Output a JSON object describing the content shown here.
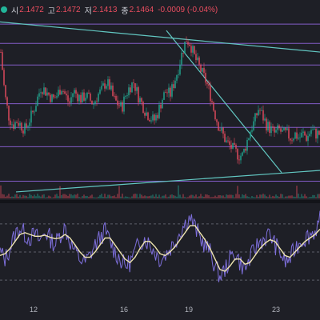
{
  "header": {
    "open_label": "시",
    "open_value": "2.1472",
    "high_label": "고",
    "high_value": "2.1472",
    "low_label": "저",
    "low_value": "2.1413",
    "close_label": "종",
    "close_value": "2.1464",
    "change": "-0.0009 (-0.04%)"
  },
  "xaxis_labels": [
    "12",
    "16",
    "19",
    "23"
  ],
  "colors": {
    "background": "#1e1f26",
    "up": "#22ab94",
    "down": "#e84d5f",
    "level_line": "#9c6cf0",
    "trend_line": "#62c7c2",
    "oscillator": "#7e6fdc",
    "signal": "#f0e6b0"
  },
  "chart_data": [
    {
      "type": "candlestick",
      "title": "",
      "x": {
        "start_label": "12",
        "labels": [
          "12",
          "16",
          "19",
          "23"
        ]
      },
      "price": [
        2.34,
        2.24,
        2.19,
        2.17,
        2.18,
        2.17,
        2.16,
        2.18,
        2.2,
        2.23,
        2.26,
        2.25,
        2.24,
        2.23,
        2.24,
        2.26,
        2.24,
        2.22,
        2.25,
        2.24,
        2.23,
        2.24,
        2.23,
        2.22,
        2.24,
        2.25,
        2.27,
        2.26,
        2.23,
        2.22,
        2.21,
        2.24,
        2.26,
        2.27,
        2.24,
        2.22,
        2.2,
        2.19,
        2.18,
        2.2,
        2.23,
        2.25,
        2.24,
        2.27,
        2.3,
        2.34,
        2.37,
        2.36,
        2.33,
        2.31,
        2.29,
        2.27,
        2.24,
        2.2,
        2.17,
        2.15,
        2.13,
        2.12,
        2.11,
        2.1,
        2.1,
        2.13,
        2.16,
        2.18,
        2.21,
        2.19,
        2.17,
        2.16,
        2.15,
        2.16,
        2.15,
        2.15,
        2.14,
        2.15,
        2.14,
        2.15,
        2.14,
        2.16,
        2.15,
        2.15
      ],
      "levels": [
        2.405,
        2.36,
        2.31,
        2.22,
        2.165,
        2.12,
        2.04
      ],
      "trendlines": [
        {
          "from": [
            0.0,
            2.41
          ],
          "to": [
            1.0,
            2.34
          ]
        },
        {
          "from": [
            0.52,
            2.39
          ],
          "to": [
            0.88,
            2.06
          ]
        },
        {
          "from": [
            0.05,
            2.015
          ],
          "to": [
            1.0,
            2.065
          ]
        }
      ],
      "volume_hint": "small volume bars along bottom of price pane"
    },
    {
      "type": "line",
      "title": "",
      "series": [
        {
          "values": [
            0.0,
            -0.2,
            0.1,
            0.5,
            0.7,
            0.5,
            0.4,
            0.5,
            0.3,
            0.6,
            0.4,
            0.2,
            0.5,
            0.7,
            0.3,
            0.0,
            -0.2,
            -0.3,
            -0.1,
            0.2,
            0.4,
            0.6,
            0.3,
            0.0,
            -0.2,
            -0.4,
            -0.3,
            0.0,
            0.3,
            0.4,
            0.2,
            0.0,
            -0.2,
            -0.1,
            0.1,
            0.3,
            0.6,
            0.8,
            1.0,
            0.7,
            0.4,
            0.2,
            0.0,
            -0.4,
            -0.7,
            -0.5,
            -0.2,
            0.0,
            -0.3,
            -0.5,
            -0.2,
            0.1,
            0.3,
            0.4,
            0.5,
            0.2,
            0.0,
            -0.3,
            -0.2,
            0.1,
            0.3,
            0.4,
            0.5,
            0.6,
            0.9
          ]
        },
        {
          "values": [
            -0.1,
            -0.05,
            0.1,
            0.3,
            0.5,
            0.55,
            0.5,
            0.45,
            0.45,
            0.48,
            0.42,
            0.38,
            0.4,
            0.5,
            0.4,
            0.2,
            0.0,
            -0.15,
            -0.15,
            0.0,
            0.2,
            0.4,
            0.4,
            0.2,
            0.0,
            -0.2,
            -0.3,
            -0.15,
            0.1,
            0.3,
            0.3,
            0.15,
            -0.05,
            -0.1,
            0.0,
            0.15,
            0.35,
            0.55,
            0.75,
            0.75,
            0.55,
            0.35,
            0.1,
            -0.2,
            -0.5,
            -0.55,
            -0.4,
            -0.2,
            -0.2,
            -0.35,
            -0.3,
            -0.1,
            0.1,
            0.25,
            0.35,
            0.3,
            0.1,
            -0.1,
            -0.15,
            0.0,
            0.15,
            0.3,
            0.4,
            0.5,
            0.65
          ]
        }
      ],
      "levels": [
        0.8,
        0.0,
        -0.8
      ]
    }
  ]
}
